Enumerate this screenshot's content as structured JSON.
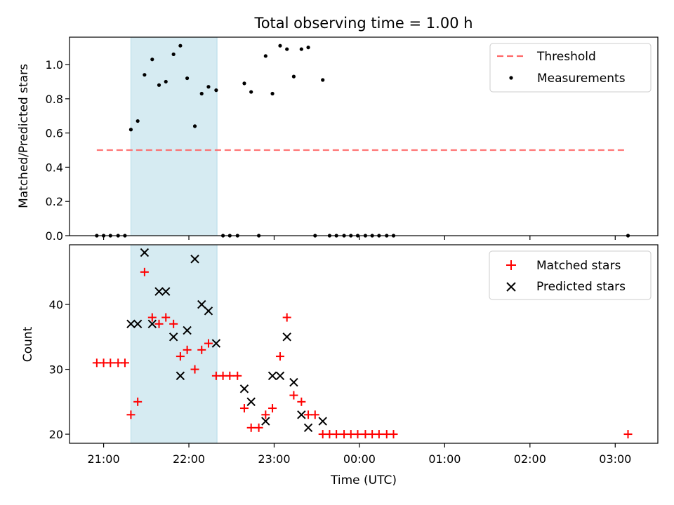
{
  "chart_data": {
    "type": "scatter",
    "title": "Total observing time = 1.00 h",
    "xlabel": "Time (UTC)",
    "x_ticks": [
      "21:00",
      "22:00",
      "23:00",
      "00:00",
      "01:00",
      "02:00",
      "03:00"
    ],
    "x_tick_hours": [
      21,
      22,
      23,
      24,
      25,
      26,
      27
    ],
    "xlim_hours": [
      20.6,
      27.5
    ],
    "shaded_interval_hours": [
      21.32,
      22.33
    ],
    "shade_color": "#add8e6",
    "top_panel": {
      "ylabel": "Matched/Predicted stars",
      "ylim": [
        0,
        1.16
      ],
      "y_ticks": [
        "0.0",
        "0.2",
        "0.4",
        "0.6",
        "0.8",
        "1.0"
      ],
      "y_tick_values": [
        0.0,
        0.2,
        0.4,
        0.6,
        0.8,
        1.0
      ],
      "threshold": {
        "name": "Threshold",
        "value": 0.5,
        "x_range_hours": [
          20.92,
          27.13
        ],
        "color": "#ff6666"
      },
      "series": [
        {
          "name": "Measurements",
          "color": "#000000",
          "x_hours": [
            20.92,
            21.0,
            21.08,
            21.17,
            21.25,
            21.32,
            21.4,
            21.48,
            21.57,
            21.65,
            21.73,
            21.82,
            21.9,
            21.98,
            22.07,
            22.15,
            22.23,
            22.32,
            22.4,
            22.48,
            22.57,
            22.65,
            22.73,
            22.82,
            22.9,
            22.98,
            23.07,
            23.15,
            23.23,
            23.32,
            23.4,
            23.48,
            23.57,
            23.65,
            23.73,
            23.82,
            23.9,
            23.98,
            24.07,
            24.15,
            24.23,
            24.32,
            24.4,
            27.15
          ],
          "values": [
            0,
            0,
            0,
            0,
            0,
            0.62,
            0.67,
            0.94,
            1.03,
            0.88,
            0.9,
            1.06,
            1.11,
            0.92,
            0.64,
            0.83,
            0.87,
            0.85,
            0,
            0,
            0,
            0.89,
            0.84,
            0,
            1.05,
            0.83,
            1.11,
            1.09,
            0.93,
            1.09,
            1.1,
            0,
            0.91,
            0,
            0,
            0,
            0,
            0,
            0,
            0,
            0,
            0,
            0,
            0
          ]
        }
      ]
    },
    "bottom_panel": {
      "ylabel": "Count",
      "ylim": [
        18.6,
        49.2
      ],
      "y_ticks": [
        "20",
        "30",
        "40"
      ],
      "y_tick_values": [
        20,
        30,
        40
      ],
      "series": [
        {
          "name": "Matched stars",
          "marker": "plus",
          "color": "#ff0000",
          "x_hours": [
            20.92,
            21.0,
            21.08,
            21.17,
            21.25,
            21.32,
            21.4,
            21.48,
            21.57,
            21.65,
            21.73,
            21.82,
            21.9,
            21.98,
            22.07,
            22.15,
            22.23,
            22.32,
            22.4,
            22.48,
            22.57,
            22.65,
            22.73,
            22.82,
            22.9,
            22.98,
            23.07,
            23.15,
            23.23,
            23.32,
            23.4,
            23.48,
            23.57,
            23.65,
            23.73,
            23.82,
            23.9,
            23.98,
            24.07,
            24.15,
            24.23,
            24.32,
            24.4,
            27.15
          ],
          "values": [
            31,
            31,
            31,
            31,
            31,
            23,
            25,
            45,
            38,
            37,
            38,
            37,
            32,
            33,
            30,
            33,
            34,
            29,
            29,
            29,
            29,
            24,
            21,
            21,
            23,
            24,
            32,
            38,
            26,
            25,
            23,
            23,
            20,
            20,
            20,
            20,
            20,
            20,
            20,
            20,
            20,
            20,
            20,
            20
          ]
        },
        {
          "name": "Predicted stars",
          "marker": "x",
          "color": "#000000",
          "x_hours": [
            21.32,
            21.4,
            21.48,
            21.57,
            21.65,
            21.73,
            21.82,
            21.9,
            21.98,
            22.07,
            22.15,
            22.23,
            22.32,
            22.65,
            22.73,
            22.9,
            22.98,
            23.07,
            23.15,
            23.23,
            23.32,
            23.4,
            23.57
          ],
          "values": [
            37,
            37,
            48,
            37,
            42,
            42,
            35,
            29,
            36,
            47,
            40,
            39,
            34,
            27,
            25,
            22,
            29,
            29,
            35,
            28,
            23,
            21,
            22
          ]
        }
      ]
    }
  }
}
